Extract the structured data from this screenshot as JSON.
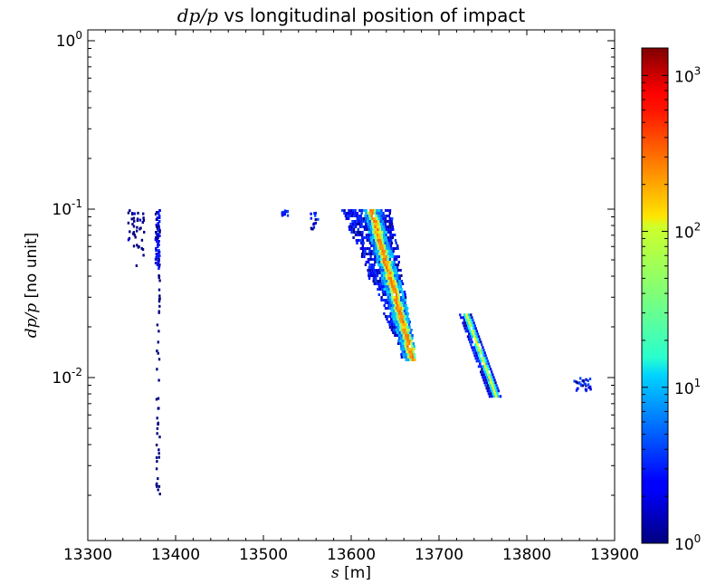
{
  "chart_data": {
    "type": "heatmap",
    "title": {
      "math": "dp/p",
      "text": " vs longitudinal position of impact"
    },
    "xlabel": {
      "math": "s",
      "text": " [m]"
    },
    "ylabel": {
      "math": "dp/p",
      "text": " [no unit]"
    },
    "xlim": [
      13300,
      13900
    ],
    "ylim": [
      0.0015,
      1.2
    ],
    "y_scale": "log",
    "x_ticks": [
      {
        "value": 13300,
        "label": "13300"
      },
      {
        "value": 13400,
        "label": "13400"
      },
      {
        "value": 13500,
        "label": "13500"
      },
      {
        "value": 13600,
        "label": "13600"
      },
      {
        "value": 13700,
        "label": "13700"
      },
      {
        "value": 13800,
        "label": "13800"
      },
      {
        "value": 13900,
        "label": "13900"
      }
    ],
    "y_ticks": [
      {
        "value": 1,
        "base": "10",
        "exp": "0"
      },
      {
        "value": 0.1,
        "base": "10",
        "exp": "-1"
      },
      {
        "value": 0.01,
        "base": "10",
        "exp": "-2"
      }
    ],
    "grid": false,
    "colorbar": {
      "colormap": "jet",
      "scale": "log",
      "range": [
        1,
        1500
      ],
      "ticks": [
        {
          "value": 1,
          "base": "10",
          "exp": "0"
        },
        {
          "value": 10,
          "base": "10",
          "exp": "1"
        },
        {
          "value": 100,
          "base": "10",
          "exp": "2"
        },
        {
          "value": 1000,
          "base": "10",
          "exp": "3"
        }
      ]
    },
    "regions": [
      {
        "s_min": 13345,
        "s_max": 13364,
        "dpp_min": 0.045,
        "dpp_max": 0.1,
        "peak_count": 2
      },
      {
        "s_min": 13370,
        "s_max": 13384,
        "dpp_min": 0.002,
        "dpp_max": 0.1,
        "peak_count": 4
      },
      {
        "s_min": 13518,
        "s_max": 13528,
        "dpp_min": 0.092,
        "dpp_max": 0.1,
        "peak_count": 2
      },
      {
        "s_min": 13552,
        "s_max": 13562,
        "dpp_min": 0.075,
        "dpp_max": 0.1,
        "peak_count": 6
      },
      {
        "s_min": 13588,
        "s_max": 13675,
        "dpp_min": 0.012,
        "dpp_max": 0.1,
        "peak_count": 300
      },
      {
        "s_min": 13722,
        "s_max": 13768,
        "dpp_min": 0.0078,
        "dpp_max": 0.024,
        "peak_count": 120
      },
      {
        "s_min": 13853,
        "s_max": 13872,
        "dpp_min": 0.0084,
        "dpp_max": 0.0102,
        "peak_count": 4
      }
    ]
  }
}
